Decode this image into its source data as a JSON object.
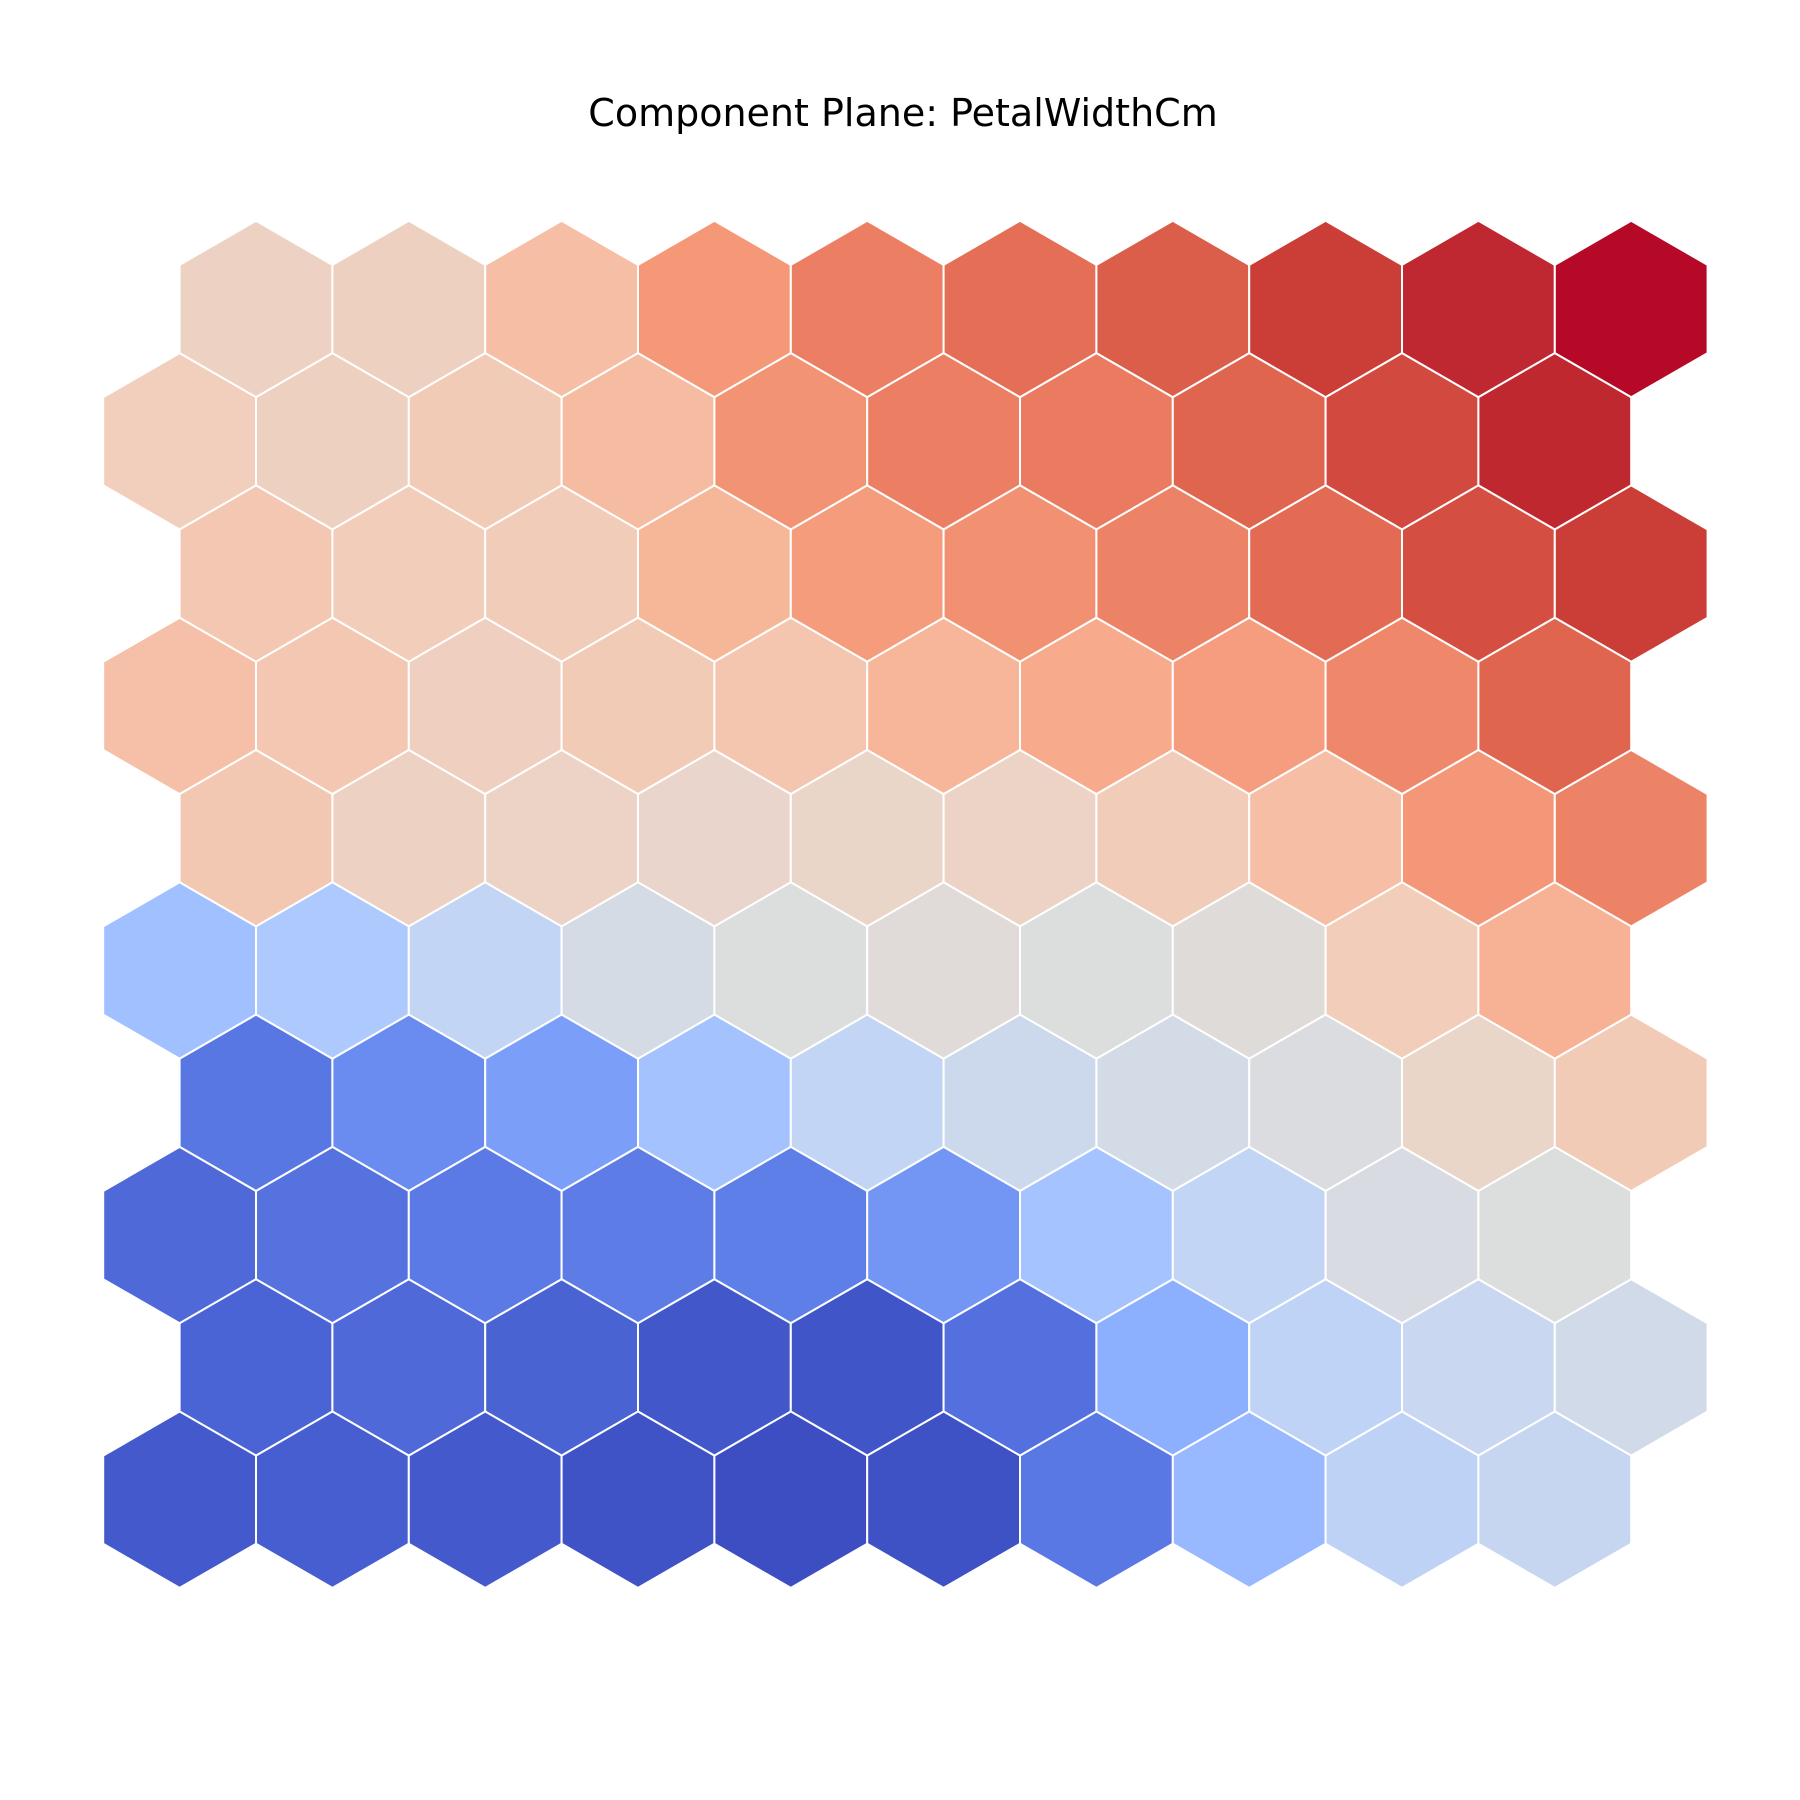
{
  "chart_data": {
    "type": "heatmap",
    "title": "Component Plane: PetalWidthCm",
    "layout": "hexagonal",
    "colormap": "coolwarm",
    "grid_shape": [
      10,
      10
    ],
    "row_order": "top-to-bottom",
    "grid": false,
    "legend": "none",
    "cell_colors": [
      [
        "#edd1c2",
        "#eed0c0",
        "#f6bea4",
        "#f59878",
        "#ec7f63",
        "#e46e56",
        "#db5e4b",
        "#cb3e37",
        "#bf2830",
        "#b50927"
      ],
      [
        "#f2cfbd",
        "#eed0c0",
        "#f2cbb7",
        "#f6bca2",
        "#f29374",
        "#ec7f63",
        "#ea7b60",
        "#e0654f",
        "#d1493f",
        "#c0282f"
      ],
      [
        "#f3c7b1",
        "#f1cdba",
        "#f1ccb8",
        "#f6b799",
        "#f59c7d",
        "#f29072",
        "#ed8366",
        "#e36b54",
        "#d44e41",
        "#cb3e37"
      ],
      [
        "#f5c0a7",
        "#f3c7b1",
        "#efcfbf",
        "#f2cbb7",
        "#f4c6af",
        "#f7b599",
        "#f7aa8c",
        "#f59d7e",
        "#ef886b",
        "#e0654f"
      ],
      [
        "#f3c8b2",
        "#edd2c3",
        "#ecd3c5",
        "#e9d5cb",
        "#ead5c9",
        "#ecd3c5",
        "#f1ccb8",
        "#f6bea4",
        "#f39778",
        "#ed8366"
      ],
      [
        "#a1c0ff",
        "#adc9fd",
        "#c3d5f4",
        "#d5dbe5",
        "#dcdddd",
        "#e0dbd8",
        "#dcdddd",
        "#dfdbd9",
        "#f1cdba",
        "#f7b194"
      ],
      [
        "#5977e3",
        "#6a8bef",
        "#7b9ff9",
        "#a3c2fe",
        "#c3d5f4",
        "#ccd9ed",
        "#d3dbe7",
        "#dadce0",
        "#ead5c9",
        "#f2cbb7"
      ],
      [
        "#4f69d9",
        "#5572df",
        "#5b7ae5",
        "#5d7ce6",
        "#5f7fe8",
        "#7396f5",
        "#a5c3fe",
        "#c3d5f4",
        "#d8dce2",
        "#dcdddd"
      ],
      [
        "#4b64d5",
        "#4f69d9",
        "#4a63d3",
        "#4257c9",
        "#4055c8",
        "#5470de",
        "#8caffe",
        "#bfd3f6",
        "#c9d7f0",
        "#d1dae9"
      ],
      [
        "#445acc",
        "#465ecf",
        "#445acc",
        "#3f53c6",
        "#3c4ec2",
        "#3e51c5",
        "#5a78e4",
        "#98b9ff",
        "#bed2f6",
        "#c6d6f1"
      ]
    ]
  }
}
